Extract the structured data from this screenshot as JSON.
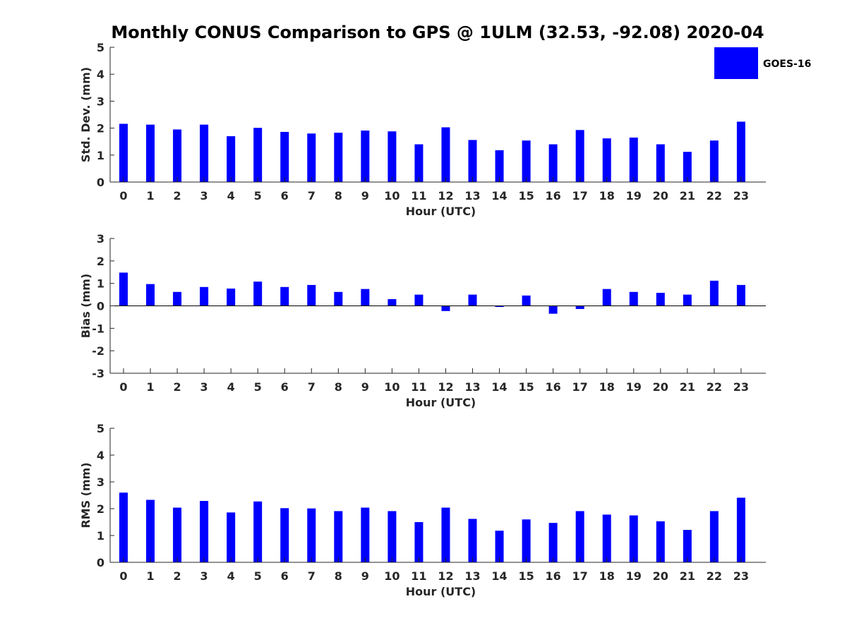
{
  "title": "Monthly CONUS Comparison to GPS @ 1ULM (32.53, -92.08) 2020-04",
  "legend": {
    "label": "GOES-16",
    "color": "#0000ff",
    "placement": "top-right"
  },
  "chart_data": [
    {
      "type": "bar",
      "xlabel": "Hour (UTC)",
      "ylabel": "Std. Dev. (mm)",
      "categories": [
        "0",
        "1",
        "2",
        "3",
        "4",
        "5",
        "6",
        "7",
        "8",
        "9",
        "10",
        "11",
        "12",
        "13",
        "14",
        "15",
        "16",
        "17",
        "18",
        "19",
        "20",
        "21",
        "22",
        "23"
      ],
      "ylim": [
        0,
        5
      ],
      "yticks": [
        0,
        1,
        2,
        3,
        4,
        5
      ],
      "grid": false,
      "series": [
        {
          "name": "GOES-16",
          "color": "#0000ff",
          "values": [
            2.16,
            2.13,
            1.95,
            2.13,
            1.7,
            2.01,
            1.86,
            1.8,
            1.83,
            1.91,
            1.88,
            1.4,
            2.03,
            1.56,
            1.18,
            1.54,
            1.4,
            1.93,
            1.62,
            1.65,
            1.4,
            1.12,
            1.54,
            2.24
          ]
        }
      ]
    },
    {
      "type": "bar",
      "xlabel": "Hour (UTC)",
      "ylabel": "Bias (mm)",
      "categories": [
        "0",
        "1",
        "2",
        "3",
        "4",
        "5",
        "6",
        "7",
        "8",
        "9",
        "10",
        "11",
        "12",
        "13",
        "14",
        "15",
        "16",
        "17",
        "18",
        "19",
        "20",
        "21",
        "22",
        "23"
      ],
      "ylim": [
        -3,
        3
      ],
      "yticks": [
        -3,
        -2,
        -1,
        0,
        1,
        2,
        3
      ],
      "grid": false,
      "zero_line": true,
      "series": [
        {
          "name": "GOES-16",
          "color": "#0000ff",
          "values": [
            1.48,
            0.97,
            0.62,
            0.84,
            0.77,
            1.08,
            0.84,
            0.93,
            0.62,
            0.75,
            0.3,
            0.5,
            -0.23,
            0.5,
            -0.05,
            0.46,
            -0.35,
            -0.14,
            0.75,
            0.62,
            0.58,
            0.5,
            1.12,
            0.93
          ]
        }
      ]
    },
    {
      "type": "bar",
      "xlabel": "Hour (UTC)",
      "ylabel": "RMS (mm)",
      "categories": [
        "0",
        "1",
        "2",
        "3",
        "4",
        "5",
        "6",
        "7",
        "8",
        "9",
        "10",
        "11",
        "12",
        "13",
        "14",
        "15",
        "16",
        "17",
        "18",
        "19",
        "20",
        "21",
        "22",
        "23"
      ],
      "ylim": [
        0,
        5
      ],
      "yticks": [
        0,
        1,
        2,
        3,
        4,
        5
      ],
      "grid": false,
      "series": [
        {
          "name": "GOES-16",
          "color": "#0000ff",
          "values": [
            2.6,
            2.33,
            2.04,
            2.29,
            1.86,
            2.27,
            2.02,
            2.01,
            1.91,
            2.04,
            1.91,
            1.5,
            2.04,
            1.62,
            1.18,
            1.6,
            1.47,
            1.91,
            1.78,
            1.75,
            1.53,
            1.21,
            1.91,
            2.41
          ]
        }
      ]
    }
  ]
}
